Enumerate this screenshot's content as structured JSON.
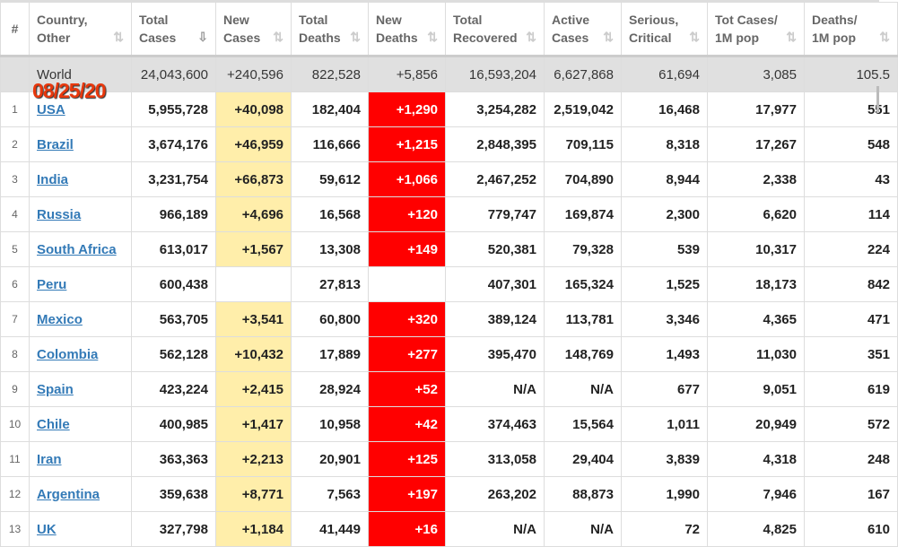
{
  "date_overlay": "08/25/20",
  "headers": [
    "#",
    "Country,\nOther",
    "Total\nCases",
    "New\nCases",
    "Total\nDeaths",
    "New\nDeaths",
    "Total\nRecovered",
    "Active\nCases",
    "Serious,\nCritical",
    "Tot Cases/\n1M pop",
    "Deaths/\n1M pop"
  ],
  "world": {
    "country": "World",
    "total_cases": "24,043,600",
    "new_cases": "+240,596",
    "total_deaths": "822,528",
    "new_deaths": "+5,856",
    "total_recovered": "16,593,204",
    "active_cases": "6,627,868",
    "serious": "61,694",
    "cases_per_1m": "3,085",
    "deaths_per_1m": "105.5"
  },
  "rows": [
    {
      "n": "1",
      "country": "USA",
      "total_cases": "5,955,728",
      "new_cases": "+40,098",
      "total_deaths": "182,404",
      "new_deaths": "+1,290",
      "total_recovered": "3,254,282",
      "active_cases": "2,519,042",
      "serious": "16,468",
      "cases_per_1m": "17,977",
      "deaths_per_1m": "551"
    },
    {
      "n": "2",
      "country": "Brazil",
      "total_cases": "3,674,176",
      "new_cases": "+46,959",
      "total_deaths": "116,666",
      "new_deaths": "+1,215",
      "total_recovered": "2,848,395",
      "active_cases": "709,115",
      "serious": "8,318",
      "cases_per_1m": "17,267",
      "deaths_per_1m": "548"
    },
    {
      "n": "3",
      "country": "India",
      "total_cases": "3,231,754",
      "new_cases": "+66,873",
      "total_deaths": "59,612",
      "new_deaths": "+1,066",
      "total_recovered": "2,467,252",
      "active_cases": "704,890",
      "serious": "8,944",
      "cases_per_1m": "2,338",
      "deaths_per_1m": "43"
    },
    {
      "n": "4",
      "country": "Russia",
      "total_cases": "966,189",
      "new_cases": "+4,696",
      "total_deaths": "16,568",
      "new_deaths": "+120",
      "total_recovered": "779,747",
      "active_cases": "169,874",
      "serious": "2,300",
      "cases_per_1m": "6,620",
      "deaths_per_1m": "114"
    },
    {
      "n": "5",
      "country": "South Africa",
      "total_cases": "613,017",
      "new_cases": "+1,567",
      "total_deaths": "13,308",
      "new_deaths": "+149",
      "total_recovered": "520,381",
      "active_cases": "79,328",
      "serious": "539",
      "cases_per_1m": "10,317",
      "deaths_per_1m": "224"
    },
    {
      "n": "6",
      "country": "Peru",
      "total_cases": "600,438",
      "new_cases": "",
      "total_deaths": "27,813",
      "new_deaths": "",
      "total_recovered": "407,301",
      "active_cases": "165,324",
      "serious": "1,525",
      "cases_per_1m": "18,173",
      "deaths_per_1m": "842"
    },
    {
      "n": "7",
      "country": "Mexico",
      "total_cases": "563,705",
      "new_cases": "+3,541",
      "total_deaths": "60,800",
      "new_deaths": "+320",
      "total_recovered": "389,124",
      "active_cases": "113,781",
      "serious": "3,346",
      "cases_per_1m": "4,365",
      "deaths_per_1m": "471"
    },
    {
      "n": "8",
      "country": "Colombia",
      "total_cases": "562,128",
      "new_cases": "+10,432",
      "total_deaths": "17,889",
      "new_deaths": "+277",
      "total_recovered": "395,470",
      "active_cases": "148,769",
      "serious": "1,493",
      "cases_per_1m": "11,030",
      "deaths_per_1m": "351"
    },
    {
      "n": "9",
      "country": "Spain",
      "total_cases": "423,224",
      "new_cases": "+2,415",
      "total_deaths": "28,924",
      "new_deaths": "+52",
      "total_recovered": "N/A",
      "active_cases": "N/A",
      "serious": "677",
      "cases_per_1m": "9,051",
      "deaths_per_1m": "619"
    },
    {
      "n": "10",
      "country": "Chile",
      "total_cases": "400,985",
      "new_cases": "+1,417",
      "total_deaths": "10,958",
      "new_deaths": "+42",
      "total_recovered": "374,463",
      "active_cases": "15,564",
      "serious": "1,011",
      "cases_per_1m": "20,949",
      "deaths_per_1m": "572"
    },
    {
      "n": "11",
      "country": "Iran",
      "total_cases": "363,363",
      "new_cases": "+2,213",
      "total_deaths": "20,901",
      "new_deaths": "+125",
      "total_recovered": "313,058",
      "active_cases": "29,404",
      "serious": "3,839",
      "cases_per_1m": "4,318",
      "deaths_per_1m": "248"
    },
    {
      "n": "12",
      "country": "Argentina",
      "total_cases": "359,638",
      "new_cases": "+8,771",
      "total_deaths": "7,563",
      "new_deaths": "+197",
      "total_recovered": "263,202",
      "active_cases": "88,873",
      "serious": "1,990",
      "cases_per_1m": "7,946",
      "deaths_per_1m": "167"
    },
    {
      "n": "13",
      "country": "UK",
      "total_cases": "327,798",
      "new_cases": "+1,184",
      "total_deaths": "41,449",
      "new_deaths": "+16",
      "total_recovered": "N/A",
      "active_cases": "N/A",
      "serious": "72",
      "cases_per_1m": "4,825",
      "deaths_per_1m": "610"
    }
  ]
}
